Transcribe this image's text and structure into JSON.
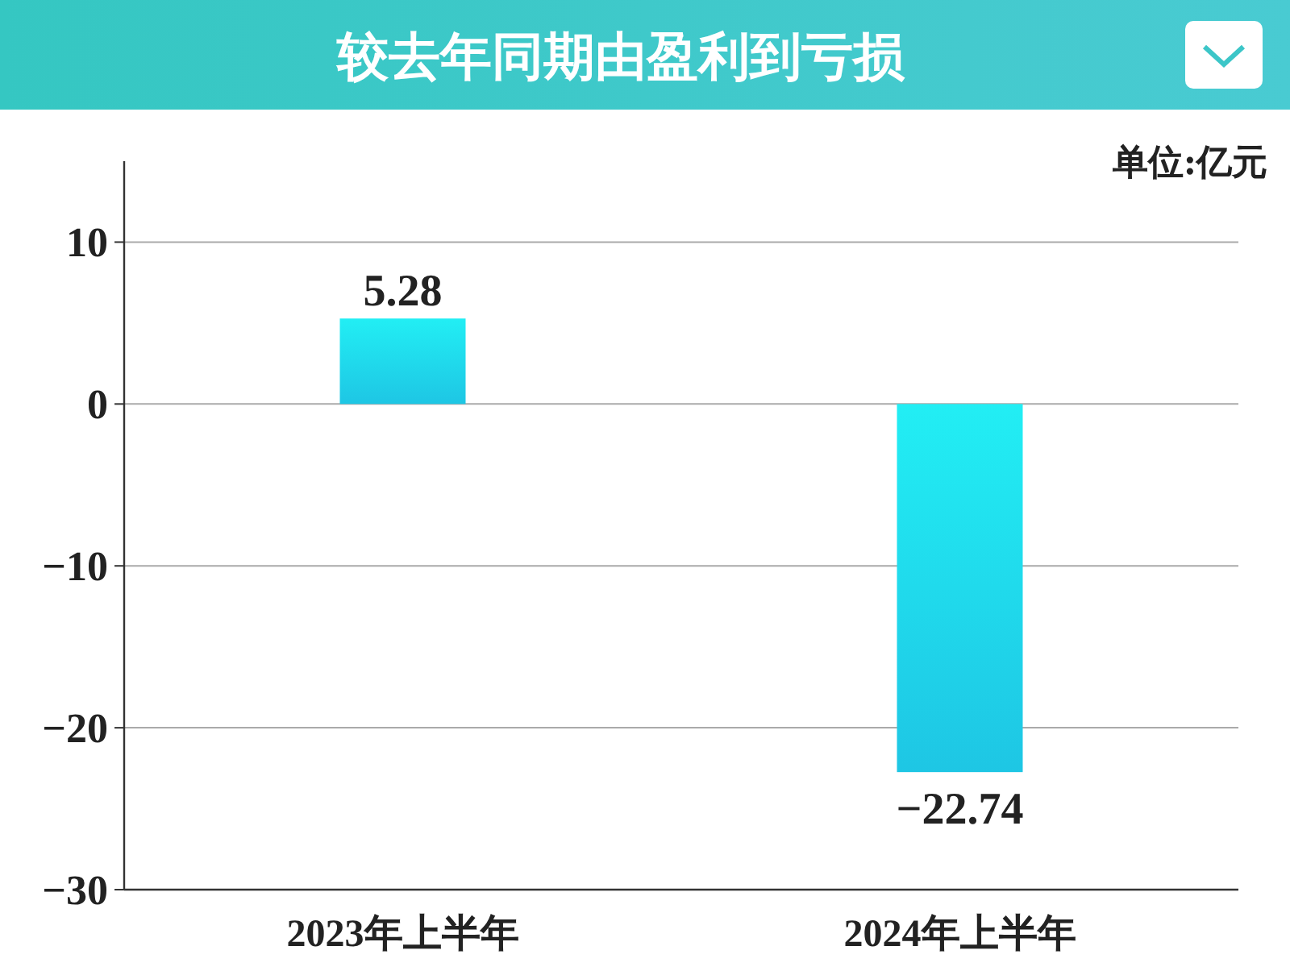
{
  "chart_data": {
    "type": "bar",
    "title": "较去年同期由盈利到亏损",
    "annotations": [
      "单位:亿元"
    ],
    "categories": [
      "2023年上半年",
      "2024年上半年"
    ],
    "values": [
      5.28,
      -22.74
    ],
    "value_labels": [
      "5.28",
      "−22.74"
    ],
    "color": "#1ec6e4",
    "ylim": [
      -30,
      15
    ],
    "yticks": [
      10,
      0,
      {
        "value": -10,
        "label": "−10"
      },
      {
        "value": -20,
        "label": "−20"
      },
      {
        "value": -30,
        "label": "−30"
      }
    ],
    "grid": "y"
  }
}
